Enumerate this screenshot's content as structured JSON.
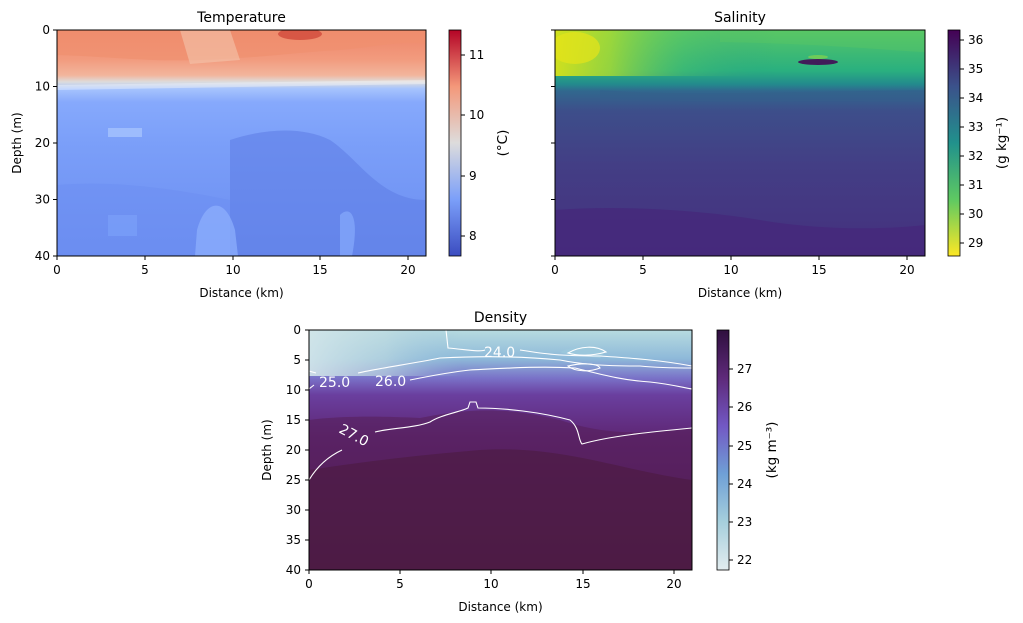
{
  "chart_data": [
    {
      "type": "heatmap",
      "title": "Temperature",
      "xlabel": "Distance (km)",
      "ylabel": "Depth (m)",
      "xlim": [
        0,
        21
      ],
      "ylim": [
        40,
        0
      ],
      "xticks": [
        0,
        5,
        10,
        15,
        20
      ],
      "yticks": [
        0,
        10,
        20,
        30,
        40
      ],
      "colormap": "coolwarm",
      "colorbar": {
        "label": "(°C)",
        "range": [
          7.6,
          11.4
        ],
        "ticks": [
          8,
          9,
          10,
          11
        ]
      },
      "field": {
        "description_points": [
          {
            "depth": 0,
            "value": 10.7
          },
          {
            "depth": 5,
            "value": 10.2
          },
          {
            "depth": 8,
            "value": 9.0
          },
          {
            "depth": 10,
            "value": 8.4
          },
          {
            "depth": 20,
            "value": 8.3
          },
          {
            "depth": 40,
            "value": 8.0
          }
        ]
      }
    },
    {
      "type": "heatmap",
      "title": "Salinity",
      "xlabel": "Distance (km)",
      "ylabel": "",
      "xlim": [
        0,
        21
      ],
      "ylim": [
        40,
        0
      ],
      "xticks": [
        0,
        5,
        10,
        15,
        20
      ],
      "yticks": [
        0,
        10,
        20,
        30,
        40
      ],
      "colormap": "viridis_r",
      "colorbar": {
        "label": "(g kg⁻¹)",
        "range": [
          28.5,
          36.4
        ],
        "ticks": [
          29,
          30,
          31,
          32,
          33,
          34,
          35,
          36
        ]
      },
      "field": {
        "description_points": [
          {
            "depth": 0,
            "value": 30.5
          },
          {
            "depth": 6,
            "value": 31.5
          },
          {
            "depth": 9,
            "value": 34.2
          },
          {
            "depth": 20,
            "value": 35.0
          },
          {
            "depth": 40,
            "value": 35.3
          }
        ]
      }
    },
    {
      "type": "heatmap",
      "title": "Density",
      "xlabel": "Distance (km)",
      "ylabel": "Depth (m)",
      "xlim": [
        0,
        21
      ],
      "ylim": [
        40,
        0
      ],
      "xticks": [
        0,
        5,
        10,
        15,
        20
      ],
      "yticks": [
        0,
        5,
        10,
        15,
        20,
        25,
        30,
        35,
        40
      ],
      "colormap": "twilight_shifted",
      "colorbar": {
        "label": "(kg m⁻³)",
        "range": [
          21.7,
          28.0
        ],
        "ticks": [
          22,
          23,
          24,
          25,
          26,
          27
        ]
      },
      "contours": [
        {
          "level": "24.0",
          "label": "24.0"
        },
        {
          "level": "25.0",
          "label": "25.0"
        },
        {
          "level": "26.0",
          "label": "26.0"
        },
        {
          "level": "27.0",
          "label": "27.0"
        }
      ]
    }
  ]
}
